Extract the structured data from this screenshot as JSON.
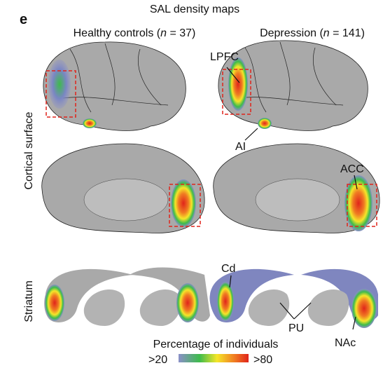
{
  "header": {
    "panel_label": "e",
    "title": "SAL density maps"
  },
  "columns": [
    {
      "label_before": "Healthy controls (",
      "label_italic": "n",
      "label_after": " = 37)"
    },
    {
      "label_before": "Depression (",
      "label_italic": "n",
      "label_after": " = 141)"
    }
  ],
  "rows": [
    "Cortical surface",
    "Striatum"
  ],
  "annotations": [
    "LPFC",
    "AI",
    "ACC",
    "Cd",
    "PU",
    "NAc"
  ],
  "colorbar": {
    "title": "Percentage of individuals",
    "low": ">20",
    "high": ">80"
  }
}
